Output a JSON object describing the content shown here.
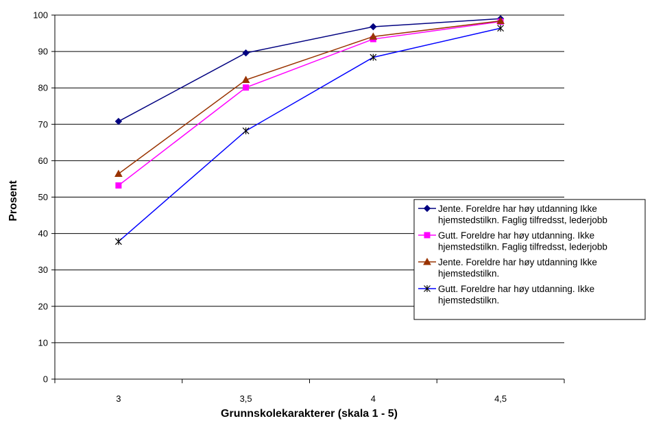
{
  "chart_data": {
    "type": "line",
    "xlabel": "Grunnskolekarakterer (skala 1 - 5)",
    "ylabel": "Prosent",
    "categories": [
      "3",
      "3,5",
      "4",
      "4,5"
    ],
    "ylim": [
      0,
      100
    ],
    "yticks": [
      0,
      10,
      20,
      30,
      40,
      50,
      60,
      70,
      80,
      90,
      100
    ],
    "grid": "horizontal",
    "legend_position": "right",
    "series": [
      {
        "name_lines": [
          "Jente. Foreldre har høy utdanning Ikke",
          "hjemstedstilkn. Faglig tilfredsst, lederjobb"
        ],
        "values": [
          70.8,
          89.6,
          96.8,
          99.0
        ],
        "color": "#000080",
        "marker": "diamond"
      },
      {
        "name_lines": [
          "Gutt. Foreldre har høy utdanning. Ikke",
          "hjemstedstilkn. Faglig tilfredsst, lederjobb"
        ],
        "values": [
          53.2,
          80.1,
          93.4,
          98.2
        ],
        "color": "#ff00ff",
        "marker": "square"
      },
      {
        "name_lines": [
          "Jente. Foreldre har høy utdanning Ikke",
          "hjemstedstilkn."
        ],
        "values": [
          56.4,
          82.2,
          94.1,
          98.4
        ],
        "color": "#993300",
        "marker": "triangle"
      },
      {
        "name_lines": [
          "Gutt. Foreldre har høy utdanning. Ikke",
          "hjemstedstilkn."
        ],
        "values": [
          37.8,
          68.2,
          88.4,
          96.4
        ],
        "color": "#0000ff",
        "marker": "asterisk"
      }
    ]
  }
}
